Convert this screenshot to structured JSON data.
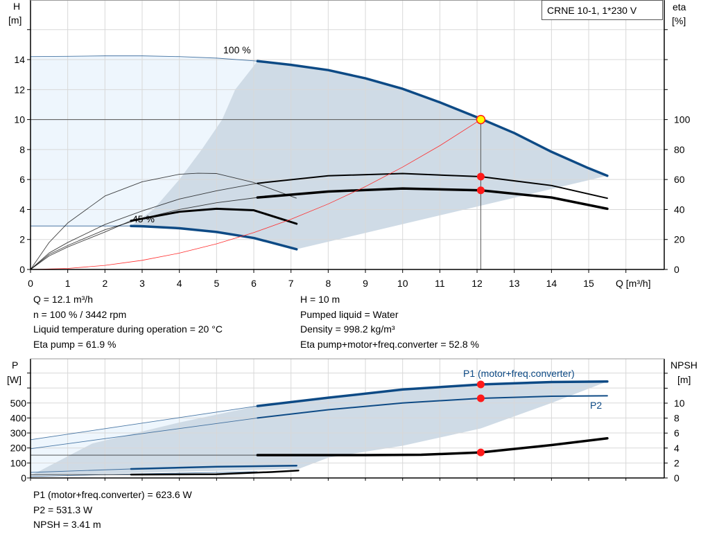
{
  "legend_box": "CRNE 10-1, 1*230 V",
  "info_top_left": [
    "Q = 12.1 m³/h",
    "n = 100 % / 3442 rpm",
    "Liquid temperature during operation = 20 °C",
    "Eta pump = 61.9 %"
  ],
  "info_top_right": [
    "H = 10 m",
    "Pumped liquid = Water",
    "Density = 998.2 kg/m³",
    "Eta pump+motor+freq.converter = 52.8 %"
  ],
  "info_bottom": [
    "P1 (motor+freq.converter) = 623.6 W",
    "P2 = 531.3 W",
    "NPSH = 3.41 m"
  ],
  "colors": {
    "curve_blue": "#0d4a85",
    "operating_range": "#cfdbe6",
    "extended_range": "#eef6fd",
    "system_curve": "#ff2a2a",
    "duty_point": "#ff1a1a",
    "duty_point_main": "#ffff00",
    "grid": "#d8d8d8"
  },
  "chart_data": [
    {
      "type": "line",
      "xlabel": "Q [m³/h]",
      "ylabel": "H\n[m]",
      "ylabel_left_lines": [
        "H",
        "[m]"
      ],
      "ylabel_right_lines": [
        "eta",
        "[%]"
      ],
      "xlim": [
        0,
        17
      ],
      "ylim": [
        0,
        18
      ],
      "y2lim": [
        0,
        180
      ],
      "xticks": [
        "0",
        "1",
        "2",
        "3",
        "4",
        "5",
        "6",
        "7",
        "8",
        "9",
        "10",
        "11",
        "12",
        "13",
        "14",
        "15"
      ],
      "yticks": [
        "0",
        "2",
        "4",
        "6",
        "8",
        "10",
        "12",
        "14"
      ],
      "y2ticks": [
        "0",
        "20",
        "40",
        "60",
        "80",
        "100"
      ],
      "grid": true,
      "annotations": [
        "100 %",
        "45 %"
      ],
      "series": [
        {
          "id": "head-100",
          "axis": "H",
          "color": "#0d4a85",
          "thin_until": 6.1,
          "points": [
            [
              0,
              14.2
            ],
            [
              1,
              14.22
            ],
            [
              2,
              14.25
            ],
            [
              3,
              14.25
            ],
            [
              4,
              14.2
            ],
            [
              5,
              14.1
            ],
            [
              6.1,
              13.9
            ],
            [
              7,
              13.65
            ],
            [
              8,
              13.3
            ],
            [
              9,
              12.75
            ],
            [
              10,
              12.05
            ],
            [
              11,
              11.15
            ],
            [
              12.1,
              10.05
            ],
            [
              13,
              9.1
            ],
            [
              14,
              7.85
            ],
            [
              15,
              6.75
            ],
            [
              15.5,
              6.25
            ]
          ]
        },
        {
          "id": "head-45",
          "axis": "H",
          "color": "#0d4a85",
          "thin_until": 2.7,
          "points": [
            [
              0,
              2.9
            ],
            [
              2.7,
              2.9
            ],
            [
              3,
              2.88
            ],
            [
              4,
              2.75
            ],
            [
              5,
              2.5
            ],
            [
              6,
              2.1
            ],
            [
              7.15,
              1.35
            ]
          ]
        },
        {
          "id": "eta-pump-100",
          "axis": "eta",
          "color": "#000000",
          "thin_until": 6.1,
          "width": 2,
          "points": [
            [
              0,
              0
            ],
            [
              0.5,
              11
            ],
            [
              1,
              18
            ],
            [
              2,
              30
            ],
            [
              3,
              39
            ],
            [
              4,
              47
            ],
            [
              5,
              52.5
            ],
            [
              6.1,
              57.5
            ],
            [
              8,
              62.5
            ],
            [
              10,
              64
            ],
            [
              12.1,
              61.9
            ],
            [
              14,
              56
            ],
            [
              15.5,
              47.5
            ]
          ]
        },
        {
          "id": "eta-total-100",
          "axis": "eta",
          "color": "#000000",
          "thin_until": 6.1,
          "width": 3.5,
          "points": [
            [
              0,
              0
            ],
            [
              0.5,
              10
            ],
            [
              1,
              16
            ],
            [
              2,
              26.5
            ],
            [
              3,
              34
            ],
            [
              4,
              40
            ],
            [
              5,
              44.5
            ],
            [
              6.1,
              48
            ],
            [
              8,
              52
            ],
            [
              10,
              54
            ],
            [
              12.1,
              52.8
            ],
            [
              14,
              48
            ],
            [
              15.5,
              40.5
            ]
          ]
        },
        {
          "id": "eta-pump-45",
          "axis": "eta",
          "color": "#000000",
          "thin_until": 7.2,
          "points": [
            [
              0,
              0
            ],
            [
              0.5,
              18
            ],
            [
              1,
              31
            ],
            [
              2,
              49
            ],
            [
              3,
              58.5
            ],
            [
              4,
              63.5
            ],
            [
              4.5,
              64.2
            ],
            [
              5,
              64
            ],
            [
              6,
              58
            ],
            [
              7.15,
              47.5
            ]
          ]
        },
        {
          "id": "eta-total-45",
          "axis": "eta",
          "color": "#000000",
          "thin_until": 2.7,
          "width": 3,
          "points": [
            [
              0,
              0
            ],
            [
              0.5,
              9
            ],
            [
              1,
              15
            ],
            [
              2,
              25
            ],
            [
              2.7,
              32.5
            ],
            [
              4,
              38.5
            ],
            [
              5,
              40.5
            ],
            [
              6,
              39.5
            ],
            [
              7.15,
              30.5
            ]
          ]
        },
        {
          "id": "system-curve",
          "axis": "H",
          "color": "#ff2a2a",
          "thin_until": 20,
          "points": [
            [
              0,
              0
            ],
            [
              1,
              0.07
            ],
            [
              2,
              0.27
            ],
            [
              3,
              0.61
            ],
            [
              4,
              1.09
            ],
            [
              5,
              1.71
            ],
            [
              6,
              2.46
            ],
            [
              7,
              3.35
            ],
            [
              8,
              4.37
            ],
            [
              9,
              5.53
            ],
            [
              10,
              6.83
            ],
            [
              11,
              8.26
            ],
            [
              12.1,
              10
            ]
          ]
        }
      ],
      "duty_point": {
        "Q": 12.1,
        "H": 10,
        "eta_pump": 61.9,
        "eta_total": 52.8
      }
    },
    {
      "type": "line",
      "xlabel": "",
      "ylabel_left_lines": [
        "P",
        "[W]"
      ],
      "ylabel_right_lines": [
        "NPSH",
        "[m]"
      ],
      "xlim": [
        0,
        17
      ],
      "ylim": [
        0,
        800
      ],
      "y2lim": [
        0,
        16
      ],
      "yticks": [
        "0",
        "100",
        "200",
        "300",
        "400",
        "500"
      ],
      "y2ticks": [
        "0",
        "2",
        "4",
        "6",
        "8",
        "10"
      ],
      "grid": true,
      "legend_labels": {
        "p1": "P1 (motor+freq.converter)",
        "p2": "P2"
      },
      "series": [
        {
          "id": "p1-100",
          "axis": "P",
          "color": "#0d4a85",
          "thin_until": 6.1,
          "width": 3.5,
          "points": [
            [
              0,
              255
            ],
            [
              6.1,
              480
            ],
            [
              8,
              535
            ],
            [
              10,
              590
            ],
            [
              12.1,
              623.6
            ],
            [
              14,
              640
            ],
            [
              15.5,
              643
            ]
          ]
        },
        {
          "id": "p2-100",
          "axis": "P",
          "color": "#0d4a85",
          "thin_until": 6.1,
          "width": 2,
          "points": [
            [
              0,
              195
            ],
            [
              6.1,
              400
            ],
            [
              8,
              455
            ],
            [
              10,
              500
            ],
            [
              12.1,
              531.3
            ],
            [
              14,
              545
            ],
            [
              15.5,
              548
            ]
          ]
        },
        {
          "id": "npsh-100",
          "axis": "NPSH",
          "color": "#000000",
          "thin_until": 6.1,
          "width": 3.5,
          "points": [
            [
              0,
              3.05
            ],
            [
              6.1,
              3.05
            ],
            [
              9,
              3.05
            ],
            [
              10.5,
              3.1
            ],
            [
              12.1,
              3.41
            ],
            [
              14,
              4.4
            ],
            [
              15.5,
              5.3
            ]
          ]
        },
        {
          "id": "p1-45",
          "axis": "P",
          "color": "#0d4a85",
          "thin_until": 2.7,
          "width": 2.5,
          "points": [
            [
              0,
              37
            ],
            [
              2.7,
              60
            ],
            [
              5,
              75
            ],
            [
              7.15,
              82
            ]
          ]
        },
        {
          "id": "p2-45",
          "axis": "P",
          "color": "#0d4a85",
          "thin_until": 7.2,
          "points": [
            [
              0,
              10
            ],
            [
              3,
              28
            ],
            [
              6.1,
              42
            ]
          ]
        },
        {
          "id": "npsh-45",
          "axis": "NPSH",
          "color": "#000000",
          "thin_until": 2.7,
          "width": 2.5,
          "points": [
            [
              0,
              0.45
            ],
            [
              2.7,
              0.45
            ],
            [
              5,
              0.5
            ],
            [
              6.5,
              0.8
            ],
            [
              7.2,
              1.0
            ]
          ]
        }
      ],
      "duty_point": {
        "Q": 12.1,
        "P1": 623.6,
        "P2": 531.3,
        "NPSH": 3.41
      }
    }
  ]
}
